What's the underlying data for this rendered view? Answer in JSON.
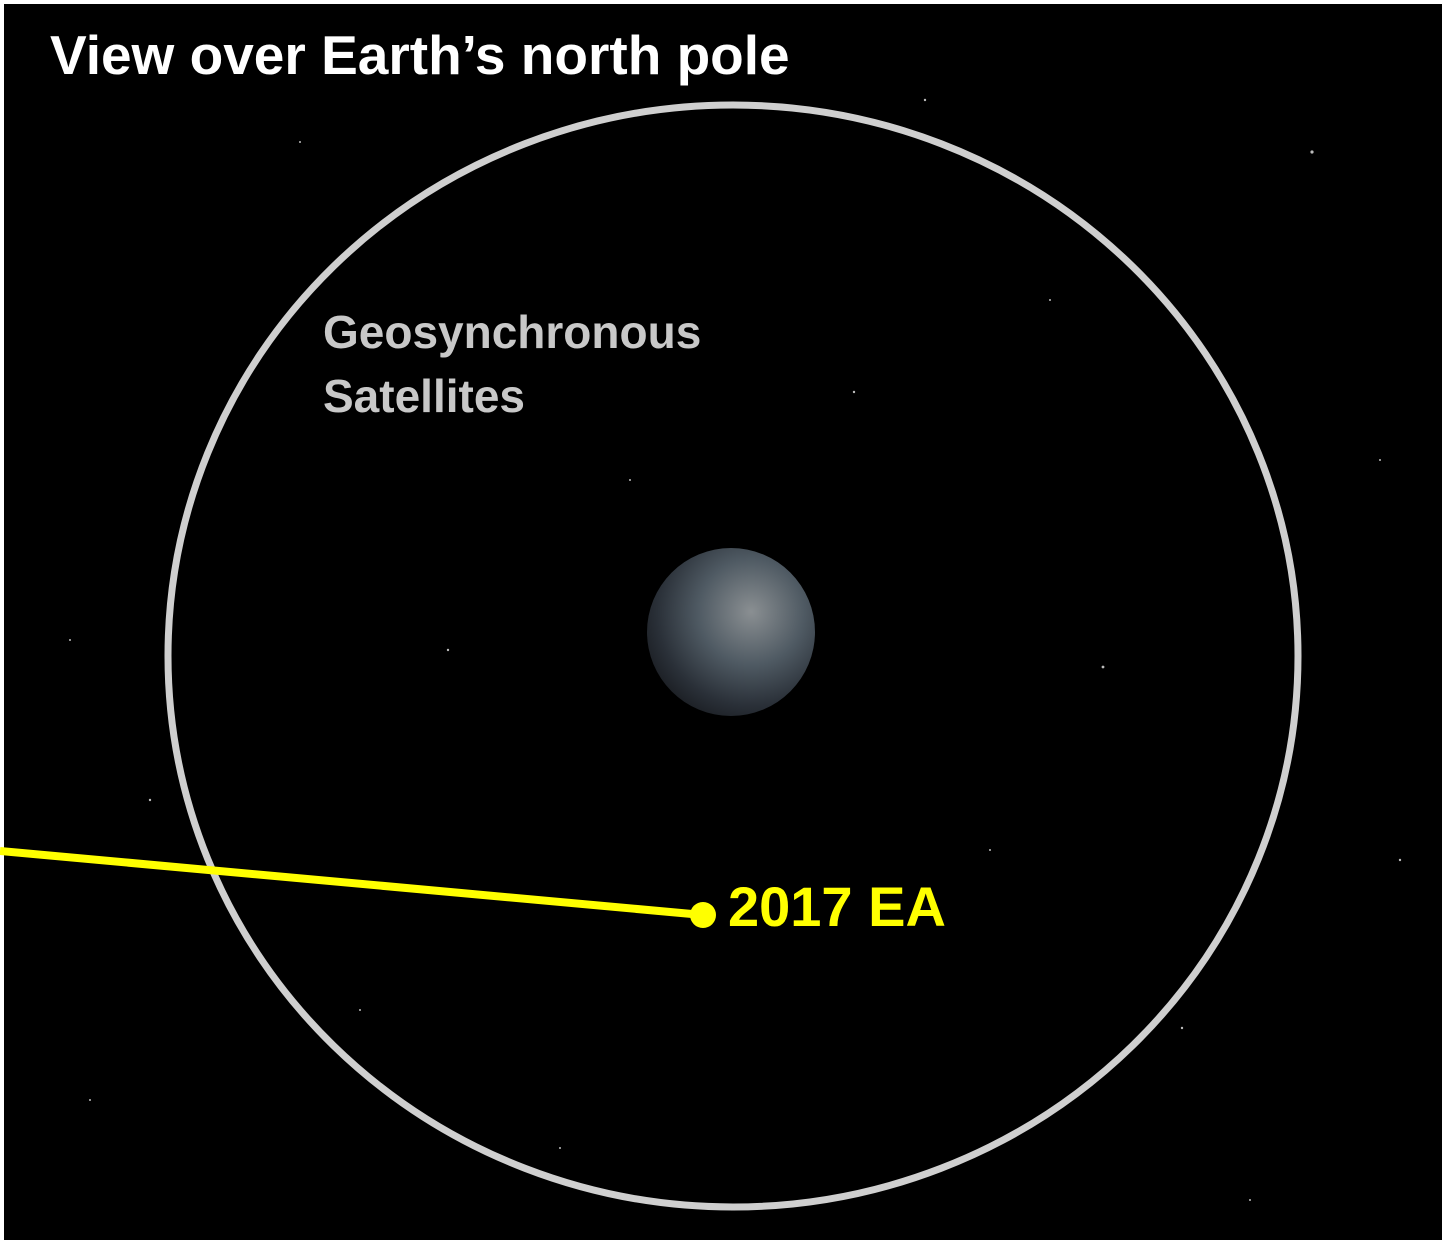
{
  "header": {
    "title": "View over Earth’s north pole"
  },
  "orbit": {
    "label_lines": [
      "Geosynchronous",
      "Satellites"
    ]
  },
  "object": {
    "label": "2017 EA"
  }
}
